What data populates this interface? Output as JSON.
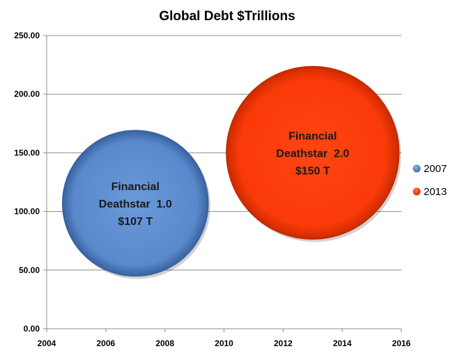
{
  "chart_data": {
    "type": "bubble",
    "title": "Global Debt $Trillions",
    "xlabel": "",
    "ylabel": "",
    "xlim": [
      2004,
      2016
    ],
    "ylim": [
      0,
      250
    ],
    "x_ticks": [
      "2004",
      "2006",
      "2008",
      "2010",
      "2012",
      "2014",
      "2016"
    ],
    "y_ticks": [
      "0.00",
      "50.00",
      "100.00",
      "150.00",
      "200.00",
      "250.00"
    ],
    "grid": "horizontal",
    "legend_position": "right",
    "series": [
      {
        "name": "2007",
        "x": 2007,
        "y": 107,
        "size": 107,
        "color": "#5b8bd0",
        "label_lines": [
          "Financial",
          "Deathstar  1.0",
          "$107 T"
        ]
      },
      {
        "name": "2013",
        "x": 2013,
        "y": 150,
        "size": 150,
        "color": "#ff3a0a",
        "label_lines": [
          "Financial",
          "Deathstar  2.0",
          "$150 T"
        ]
      }
    ]
  }
}
